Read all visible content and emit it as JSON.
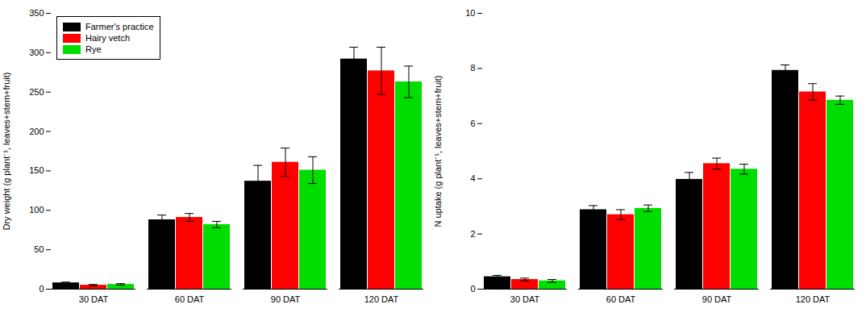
{
  "chart_data": [
    {
      "type": "bar",
      "categories": [
        "30 DAT",
        "60 DAT",
        "90 DAT",
        "120 DAT"
      ],
      "series": [
        {
          "name": "Farmer's practice",
          "color": "#000000",
          "values": [
            8,
            88,
            137,
            292
          ],
          "errors": [
            1,
            6,
            20,
            15
          ]
        },
        {
          "name": "Hairy vetch",
          "color": "#ff0000",
          "values": [
            5,
            91,
            161,
            277
          ],
          "errors": [
            1,
            5,
            18,
            30
          ]
        },
        {
          "name": "Rye",
          "color": "#00dd00",
          "values": [
            6,
            82,
            151,
            263
          ],
          "errors": [
            1,
            4,
            17,
            20
          ]
        }
      ],
      "ylabel": "Dry weight (g plant⁻¹, leaves+stem+fruit)",
      "ylim": [
        0,
        350
      ],
      "yticks": [
        0,
        50,
        100,
        150,
        200,
        250,
        300,
        350
      ],
      "legend": "upper left"
    },
    {
      "type": "bar",
      "categories": [
        "30 DAT",
        "60 DAT",
        "90 DAT",
        "120 DAT"
      ],
      "series": [
        {
          "name": "Farmer's practice",
          "color": "#000000",
          "values": [
            0.45,
            2.88,
            3.98,
            7.93
          ],
          "errors": [
            0.05,
            0.15,
            0.25,
            0.2
          ]
        },
        {
          "name": "Hairy vetch",
          "color": "#ff0000",
          "values": [
            0.35,
            2.7,
            4.55,
            7.15
          ],
          "errors": [
            0.05,
            0.18,
            0.2,
            0.3
          ]
        },
        {
          "name": "Rye",
          "color": "#00dd00",
          "values": [
            0.3,
            2.93,
            4.35,
            6.85
          ],
          "errors": [
            0.05,
            0.12,
            0.18,
            0.15
          ]
        }
      ],
      "ylabel": "N uptake (g plant⁻¹, leaves+stem+fruit)",
      "ylim": [
        0,
        10
      ],
      "yticks": [
        0,
        2,
        4,
        6,
        8,
        10
      ]
    }
  ]
}
